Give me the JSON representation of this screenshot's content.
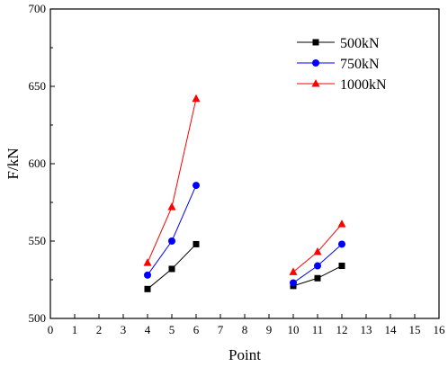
{
  "chart_data": {
    "type": "line",
    "title": "",
    "xlabel": "Point",
    "ylabel": "F/kN",
    "xlim": [
      0,
      16
    ],
    "ylim": [
      500,
      700
    ],
    "x_ticks": [
      0,
      1,
      2,
      3,
      4,
      5,
      6,
      7,
      8,
      9,
      10,
      11,
      12,
      13,
      14,
      15,
      16
    ],
    "y_ticks": [
      500,
      550,
      600,
      650,
      700
    ],
    "grid": false,
    "legend_position": "top-right",
    "series": [
      {
        "name": "500kN",
        "color": "#000000",
        "marker": "square",
        "segments": [
          {
            "x": [
              4,
              5,
              6
            ],
            "y": [
              519,
              532,
              548
            ]
          },
          {
            "x": [
              10,
              11,
              12
            ],
            "y": [
              521,
              526,
              534
            ]
          }
        ]
      },
      {
        "name": "750kN",
        "color": "#0000ff",
        "marker": "circle",
        "segments": [
          {
            "x": [
              4,
              5,
              6
            ],
            "y": [
              528,
              550,
              586
            ]
          },
          {
            "x": [
              10,
              11,
              12
            ],
            "y": [
              523,
              534,
              548
            ]
          }
        ]
      },
      {
        "name": "1000kN",
        "color": "#ff0000",
        "marker": "triangle",
        "segments": [
          {
            "x": [
              4,
              5,
              6
            ],
            "y": [
              536,
              572,
              642
            ]
          },
          {
            "x": [
              10,
              11,
              12
            ],
            "y": [
              530,
              543,
              561
            ]
          }
        ]
      }
    ]
  }
}
